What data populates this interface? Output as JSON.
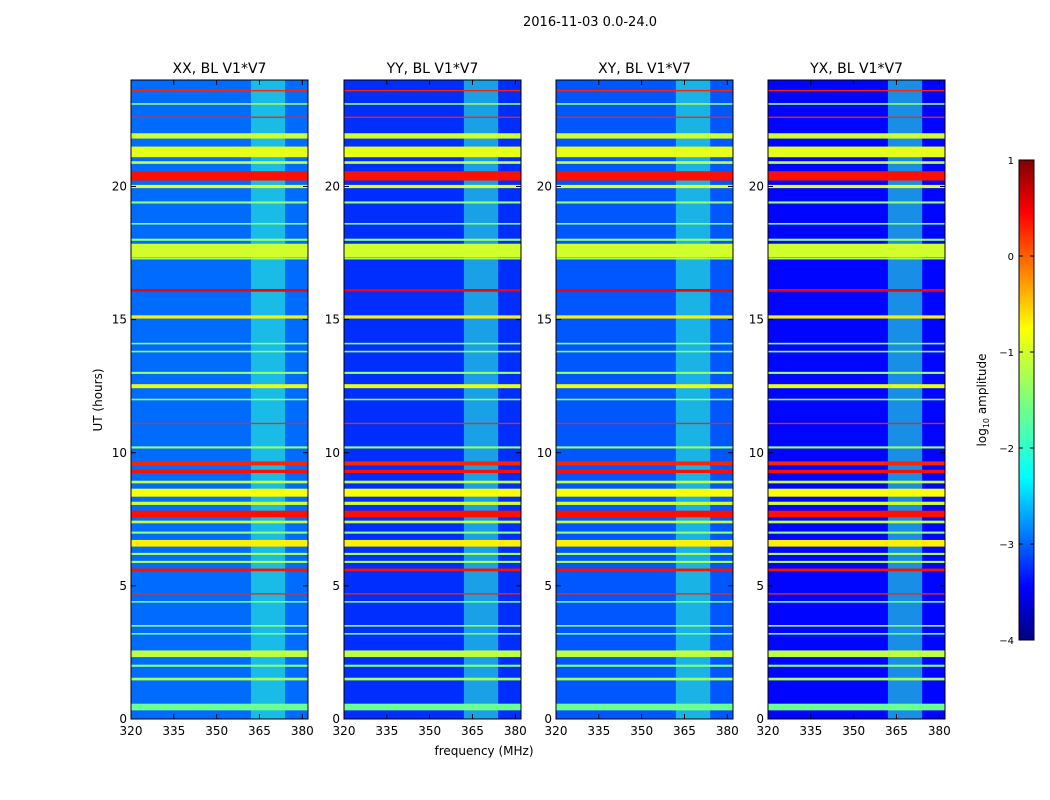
{
  "figure": {
    "suptitle": "2016-11-03 0.0-24.0",
    "shared_xlabel": "frequency (MHz)",
    "shared_ylabel": "UT (hours)"
  },
  "chart_data": {
    "type": "heatmap",
    "x_range": [
      320,
      382
    ],
    "y_range": [
      0,
      24
    ],
    "x_ticks": [
      320,
      335,
      350,
      365,
      380
    ],
    "x_tick_labels": [
      "320",
      "335",
      "350",
      "365",
      "380"
    ],
    "y_ticks": [
      0,
      5,
      10,
      15,
      20
    ],
    "y_tick_labels": [
      "0",
      "5",
      "10",
      "15",
      "20"
    ],
    "colormap": "jet",
    "colorbar": {
      "label_base": "log",
      "label_sub": "10",
      "label_rest": " amplitude",
      "range": [
        -4,
        1
      ],
      "ticks": [
        1,
        0,
        -1,
        -2,
        -3,
        -4
      ],
      "tick_labels": [
        "1",
        "0",
        "−1",
        "−2",
        "−3",
        "−4"
      ]
    },
    "panels": [
      {
        "title": "XX, BL V1*V7",
        "background_level": -2.85
      },
      {
        "title": "YY, BL V1*V7",
        "background_level": -3.15
      },
      {
        "title": "XY, BL V1*V7",
        "background_level": -2.95
      },
      {
        "title": "YX, BL V1*V7",
        "background_level": -3.35
      }
    ],
    "active_band_mhz": [
      362,
      374
    ],
    "active_band_level": -1.9,
    "rfi_lines": [
      {
        "t": 0.45,
        "level": -1.6,
        "w": 0.25
      },
      {
        "t": 1.5,
        "level": -1.3,
        "w": 0.1
      },
      {
        "t": 2.0,
        "level": -1.5,
        "w": 0.08
      },
      {
        "t": 2.45,
        "level": -1.2,
        "w": 0.25
      },
      {
        "t": 3.2,
        "level": -1.6,
        "w": 0.06
      },
      {
        "t": 3.5,
        "level": -1.4,
        "w": 0.06
      },
      {
        "t": 4.4,
        "level": -1.6,
        "w": 0.06
      },
      {
        "t": 4.7,
        "level": 0.2,
        "w": 0.05
      },
      {
        "t": 5.6,
        "level": 0.3,
        "w": 0.1
      },
      {
        "t": 5.9,
        "level": -1.3,
        "w": 0.08
      },
      {
        "t": 6.2,
        "level": -1.3,
        "w": 0.08
      },
      {
        "t": 6.6,
        "level": -0.8,
        "w": 0.25
      },
      {
        "t": 7.0,
        "level": -1.4,
        "w": 0.08
      },
      {
        "t": 7.4,
        "level": -1.2,
        "w": 0.1
      },
      {
        "t": 7.7,
        "level": 0.3,
        "w": 0.25
      },
      {
        "t": 8.1,
        "level": -1.1,
        "w": 0.12
      },
      {
        "t": 8.5,
        "level": -0.9,
        "w": 0.3
      },
      {
        "t": 8.9,
        "level": -1.2,
        "w": 0.1
      },
      {
        "t": 9.3,
        "level": 0.3,
        "w": 0.12
      },
      {
        "t": 9.6,
        "level": 0.2,
        "w": 0.15
      },
      {
        "t": 10.2,
        "level": -1.4,
        "w": 0.08
      },
      {
        "t": 11.1,
        "level": 0.2,
        "w": 0.05
      },
      {
        "t": 12.0,
        "level": -1.5,
        "w": 0.06
      },
      {
        "t": 12.5,
        "level": -1.0,
        "w": 0.15
      },
      {
        "t": 13.0,
        "level": -1.4,
        "w": 0.08
      },
      {
        "t": 13.8,
        "level": -1.5,
        "w": 0.06
      },
      {
        "t": 14.1,
        "level": -1.5,
        "w": 0.06
      },
      {
        "t": 15.1,
        "level": -0.8,
        "w": 0.12
      },
      {
        "t": 16.1,
        "level": 0.4,
        "w": 0.1
      },
      {
        "t": 17.3,
        "level": -1.3,
        "w": 0.08
      },
      {
        "t": 17.6,
        "level": -1.1,
        "w": 0.5
      },
      {
        "t": 18.0,
        "level": -1.4,
        "w": 0.08
      },
      {
        "t": 18.6,
        "level": -1.5,
        "w": 0.06
      },
      {
        "t": 19.4,
        "level": -1.4,
        "w": 0.08
      },
      {
        "t": 20.0,
        "level": -1.0,
        "w": 0.12
      },
      {
        "t": 20.4,
        "level": 0.3,
        "w": 0.35
      },
      {
        "t": 20.9,
        "level": -1.2,
        "w": 0.1
      },
      {
        "t": 21.3,
        "level": -1.0,
        "w": 0.4
      },
      {
        "t": 21.9,
        "level": -1.1,
        "w": 0.2
      },
      {
        "t": 22.6,
        "level": 0.2,
        "w": 0.05
      },
      {
        "t": 23.1,
        "level": -1.4,
        "w": 0.06
      },
      {
        "t": 23.6,
        "level": 0.2,
        "w": 0.05
      }
    ]
  }
}
